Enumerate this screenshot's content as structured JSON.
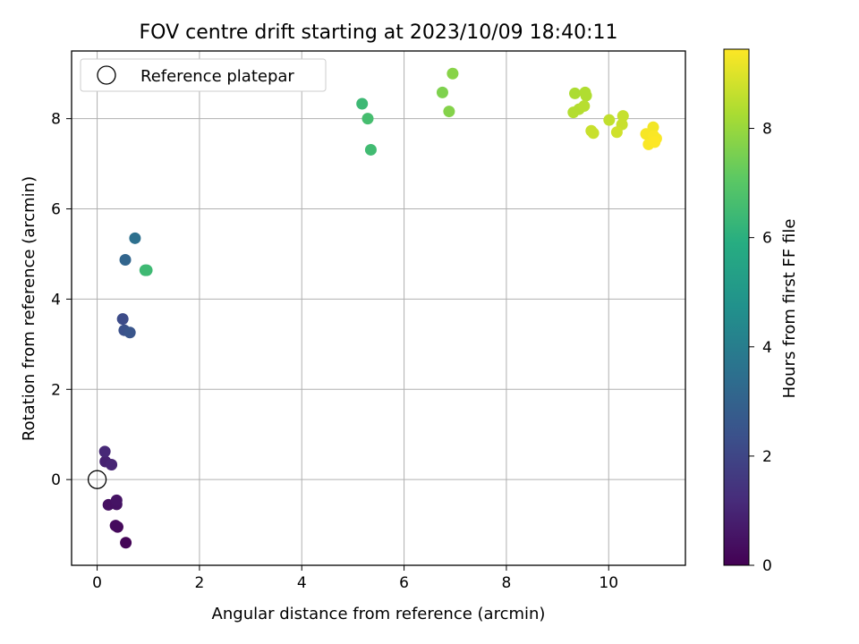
{
  "chart_data": {
    "type": "scatter",
    "title": "FOV centre drift starting at 2023/10/09 18:40:11",
    "xlabel": "Angular distance from reference (arcmin)",
    "ylabel": "Rotation from reference (arcmin)",
    "xlim": [
      -0.5,
      11.5
    ],
    "ylim": [
      -1.9,
      9.5
    ],
    "xticks": [
      0,
      2,
      4,
      6,
      8,
      10
    ],
    "xtick_labels": [
      "0",
      "2",
      "4",
      "6",
      "8",
      "10"
    ],
    "yticks": [
      0,
      2,
      4,
      6,
      8
    ],
    "ytick_labels": [
      "0",
      "2",
      "4",
      "6",
      "8"
    ],
    "grid": true,
    "legend": {
      "placement": "top-left",
      "entries": [
        "Reference platepar"
      ]
    },
    "reference_point": {
      "x": 0,
      "y": 0
    },
    "colorbar": {
      "label": "Hours from first FF file",
      "colormap": "viridis",
      "range": [
        0,
        9.45
      ],
      "ticks": [
        0,
        2,
        4,
        6,
        8
      ],
      "tick_labels": [
        "0",
        "2",
        "4",
        "6",
        "8"
      ]
    },
    "points": [
      {
        "x": 0.56,
        "y": -1.4,
        "c": 0.1
      },
      {
        "x": 0.4,
        "y": -1.05,
        "c": 0.2
      },
      {
        "x": 0.36,
        "y": -1.02,
        "c": 0.28
      },
      {
        "x": 0.22,
        "y": -0.56,
        "c": 0.4
      },
      {
        "x": 0.38,
        "y": -0.55,
        "c": 0.45
      },
      {
        "x": 0.38,
        "y": -0.46,
        "c": 0.5
      },
      {
        "x": 0.16,
        "y": 0.4,
        "c": 0.9
      },
      {
        "x": 0.28,
        "y": 0.33,
        "c": 1.0
      },
      {
        "x": 0.15,
        "y": 0.62,
        "c": 1.1
      },
      {
        "x": 0.5,
        "y": 3.56,
        "c": 2.2
      },
      {
        "x": 0.53,
        "y": 3.31,
        "c": 2.35
      },
      {
        "x": 0.64,
        "y": 3.26,
        "c": 2.5
      },
      {
        "x": 0.55,
        "y": 4.87,
        "c": 3.1
      },
      {
        "x": 0.74,
        "y": 5.35,
        "c": 3.5
      },
      {
        "x": 0.94,
        "y": 4.64,
        "c": 6.4
      },
      {
        "x": 0.97,
        "y": 4.64,
        "c": 6.45
      },
      {
        "x": 5.18,
        "y": 8.33,
        "c": 6.4
      },
      {
        "x": 5.29,
        "y": 8.0,
        "c": 6.6
      },
      {
        "x": 5.35,
        "y": 7.31,
        "c": 6.5
      },
      {
        "x": 6.75,
        "y": 8.58,
        "c": 7.6
      },
      {
        "x": 6.88,
        "y": 8.16,
        "c": 7.7
      },
      {
        "x": 6.95,
        "y": 9.0,
        "c": 7.75
      },
      {
        "x": 9.34,
        "y": 8.56,
        "c": 8.3
      },
      {
        "x": 9.54,
        "y": 8.58,
        "c": 8.35
      },
      {
        "x": 9.56,
        "y": 8.51,
        "c": 8.35
      },
      {
        "x": 9.31,
        "y": 8.14,
        "c": 8.4
      },
      {
        "x": 9.42,
        "y": 8.21,
        "c": 8.4
      },
      {
        "x": 9.52,
        "y": 8.28,
        "c": 8.45
      },
      {
        "x": 9.66,
        "y": 7.73,
        "c": 8.7
      },
      {
        "x": 9.7,
        "y": 7.68,
        "c": 8.7
      },
      {
        "x": 10.01,
        "y": 7.97,
        "c": 8.6
      },
      {
        "x": 10.28,
        "y": 8.06,
        "c": 8.65
      },
      {
        "x": 10.26,
        "y": 7.87,
        "c": 8.7
      },
      {
        "x": 10.16,
        "y": 7.7,
        "c": 8.8
      },
      {
        "x": 10.87,
        "y": 7.81,
        "c": 9.3
      },
      {
        "x": 10.73,
        "y": 7.66,
        "c": 9.35
      },
      {
        "x": 10.82,
        "y": 7.57,
        "c": 9.35
      },
      {
        "x": 10.88,
        "y": 7.62,
        "c": 9.4
      },
      {
        "x": 10.93,
        "y": 7.56,
        "c": 9.4
      },
      {
        "x": 10.78,
        "y": 7.43,
        "c": 9.4
      },
      {
        "x": 10.9,
        "y": 7.48,
        "c": 9.45
      }
    ]
  }
}
